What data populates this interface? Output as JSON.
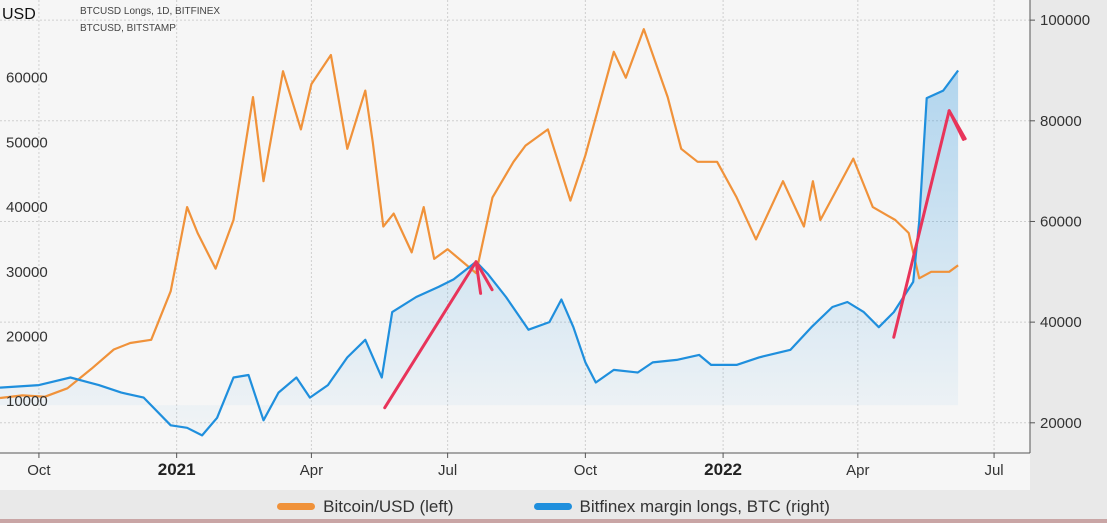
{
  "chart_data": {
    "type": "line",
    "unit_label": "USD",
    "sources": [
      "BTCUSD Longs, 1D, BITFINEX",
      "BTCUSD, BITSTAMP"
    ],
    "x_ticks": [
      {
        "label": "Oct",
        "date": "2020-10-01",
        "bold": false
      },
      {
        "label": "2021",
        "date": "2021-01-01",
        "bold": true
      },
      {
        "label": "Apr",
        "date": "2021-04-01",
        "bold": false
      },
      {
        "label": "Jul",
        "date": "2021-07-01",
        "bold": false
      },
      {
        "label": "Oct",
        "date": "2021-10-01",
        "bold": false
      },
      {
        "label": "2022",
        "date": "2022-01-01",
        "bold": true
      },
      {
        "label": "Apr",
        "date": "2022-04-01",
        "bold": false
      },
      {
        "label": "Jul",
        "date": "2022-07-01",
        "bold": false
      }
    ],
    "xlim": [
      "2020-09-05",
      "2022-07-25"
    ],
    "y_left": {
      "ticks": [
        10000,
        20000,
        30000,
        40000,
        50000,
        60000
      ],
      "lim": [
        2000,
        72000
      ]
    },
    "y_right": {
      "ticks": [
        20000,
        40000,
        60000,
        80000,
        100000
      ],
      "lim": [
        14000,
        104000
      ]
    },
    "series": [
      {
        "name": "Bitcoin/USD (left)",
        "axis": "left",
        "color": "#f0923a",
        "points": [
          [
            "2020-09-05",
            10500
          ],
          [
            "2020-09-20",
            10900
          ],
          [
            "2020-10-05",
            10700
          ],
          [
            "2020-10-20",
            12000
          ],
          [
            "2020-11-05",
            15000
          ],
          [
            "2020-11-20",
            18000
          ],
          [
            "2020-12-01",
            19000
          ],
          [
            "2020-12-15",
            19500
          ],
          [
            "2020-12-28",
            27000
          ],
          [
            "2021-01-08",
            40000
          ],
          [
            "2021-01-15",
            36000
          ],
          [
            "2021-01-27",
            30500
          ],
          [
            "2021-02-08",
            38000
          ],
          [
            "2021-02-21",
            57000
          ],
          [
            "2021-02-28",
            44000
          ],
          [
            "2021-03-13",
            61000
          ],
          [
            "2021-03-25",
            52000
          ],
          [
            "2021-04-01",
            59000
          ],
          [
            "2021-04-14",
            63500
          ],
          [
            "2021-04-25",
            49000
          ],
          [
            "2021-05-07",
            58000
          ],
          [
            "2021-05-12",
            50000
          ],
          [
            "2021-05-19",
            37000
          ],
          [
            "2021-05-26",
            39000
          ],
          [
            "2021-06-07",
            33000
          ],
          [
            "2021-06-15",
            40000
          ],
          [
            "2021-06-22",
            32000
          ],
          [
            "2021-07-01",
            33500
          ],
          [
            "2021-07-20",
            29800
          ],
          [
            "2021-07-31",
            41500
          ],
          [
            "2021-08-14",
            47000
          ],
          [
            "2021-08-22",
            49500
          ],
          [
            "2021-09-06",
            52000
          ],
          [
            "2021-09-21",
            41000
          ],
          [
            "2021-10-01",
            48000
          ],
          [
            "2021-10-20",
            64000
          ],
          [
            "2021-10-28",
            60000
          ],
          [
            "2021-11-09",
            67500
          ],
          [
            "2021-11-25",
            57000
          ],
          [
            "2021-12-04",
            49000
          ],
          [
            "2021-12-15",
            47000
          ],
          [
            "2021-12-28",
            47000
          ],
          [
            "2022-01-10",
            41500
          ],
          [
            "2022-01-23",
            35000
          ],
          [
            "2022-02-10",
            44000
          ],
          [
            "2022-02-24",
            37000
          ],
          [
            "2022-03-02",
            44000
          ],
          [
            "2022-03-07",
            38000
          ],
          [
            "2022-03-29",
            47500
          ],
          [
            "2022-04-11",
            40000
          ],
          [
            "2022-04-26",
            38000
          ],
          [
            "2022-05-05",
            36000
          ],
          [
            "2022-05-12",
            29000
          ],
          [
            "2022-05-20",
            30000
          ],
          [
            "2022-06-01",
            30000
          ],
          [
            "2022-06-07",
            31000
          ]
        ]
      },
      {
        "name": "Bitfinex margin longs, BTC (right)",
        "axis": "right",
        "color": "#1f8fdd",
        "points": [
          [
            "2020-09-05",
            27000
          ],
          [
            "2020-10-01",
            27500
          ],
          [
            "2020-10-22",
            29000
          ],
          [
            "2020-11-10",
            27500
          ],
          [
            "2020-11-25",
            26000
          ],
          [
            "2020-12-10",
            25000
          ],
          [
            "2020-12-28",
            19500
          ],
          [
            "2021-01-08",
            19000
          ],
          [
            "2021-01-18",
            17500
          ],
          [
            "2021-01-28",
            21000
          ],
          [
            "2021-02-08",
            29000
          ],
          [
            "2021-02-18",
            29500
          ],
          [
            "2021-02-28",
            20500
          ],
          [
            "2021-03-10",
            26000
          ],
          [
            "2021-03-22",
            29000
          ],
          [
            "2021-03-31",
            25000
          ],
          [
            "2021-04-12",
            27500
          ],
          [
            "2021-04-25",
            33000
          ],
          [
            "2021-05-07",
            36500
          ],
          [
            "2021-05-18",
            29000
          ],
          [
            "2021-05-25",
            42000
          ],
          [
            "2021-06-10",
            45000
          ],
          [
            "2021-06-25",
            47000
          ],
          [
            "2021-07-05",
            48500
          ],
          [
            "2021-07-20",
            52000
          ],
          [
            "2021-07-28",
            49500
          ],
          [
            "2021-08-09",
            45000
          ],
          [
            "2021-08-24",
            38500
          ],
          [
            "2021-09-07",
            40000
          ],
          [
            "2021-09-15",
            44500
          ],
          [
            "2021-09-23",
            39000
          ],
          [
            "2021-10-01",
            32000
          ],
          [
            "2021-10-08",
            28000
          ],
          [
            "2021-10-20",
            30500
          ],
          [
            "2021-11-05",
            30000
          ],
          [
            "2021-11-15",
            32000
          ],
          [
            "2021-12-01",
            32500
          ],
          [
            "2021-12-16",
            33500
          ],
          [
            "2021-12-24",
            31500
          ],
          [
            "2022-01-10",
            31500
          ],
          [
            "2022-01-25",
            33000
          ],
          [
            "2022-02-15",
            34500
          ],
          [
            "2022-03-01",
            39000
          ],
          [
            "2022-03-15",
            43000
          ],
          [
            "2022-03-25",
            44000
          ],
          [
            "2022-04-05",
            42000
          ],
          [
            "2022-04-15",
            39000
          ],
          [
            "2022-04-25",
            42000
          ],
          [
            "2022-05-08",
            48000
          ],
          [
            "2022-05-12",
            60000
          ],
          [
            "2022-05-17",
            84500
          ],
          [
            "2022-05-28",
            86000
          ],
          [
            "2022-06-07",
            90000
          ]
        ]
      }
    ],
    "annotations": [
      {
        "type": "arrow",
        "color": "#e8345a",
        "from": [
          "2021-05-20",
          23000
        ],
        "to": [
          "2021-07-20",
          52000
        ],
        "axis": "right"
      },
      {
        "type": "arrow",
        "color": "#e8345a",
        "from": [
          "2022-04-25",
          37000
        ],
        "to": [
          "2022-06-01",
          82000
        ],
        "axis": "right"
      }
    ],
    "legend": {
      "placement": "bottom"
    },
    "grid": true
  }
}
